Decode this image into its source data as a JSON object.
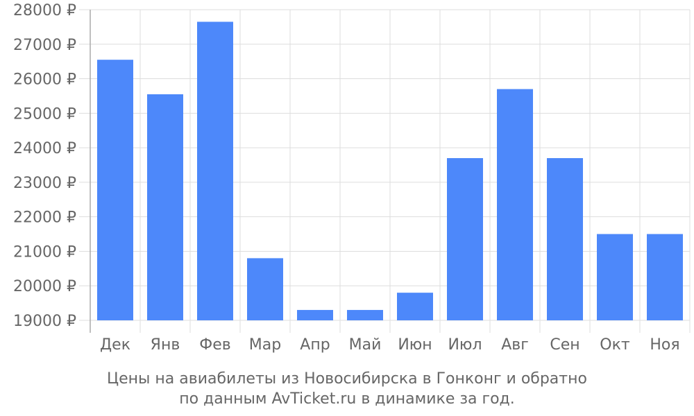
{
  "chart_data": {
    "type": "bar",
    "categories": [
      "Дек",
      "Янв",
      "Фев",
      "Мар",
      "Апр",
      "Май",
      "Июн",
      "Июл",
      "Авг",
      "Сен",
      "Окт",
      "Ноя"
    ],
    "values": [
      26550,
      25550,
      27650,
      20800,
      19300,
      19300,
      19800,
      23700,
      25700,
      23700,
      21500,
      21500
    ],
    "ylim": [
      19000,
      28000
    ],
    "ytick_step": 1000,
    "ytick_suffix": " ₽",
    "grid": true,
    "bar_color": "#4d88fa",
    "grid_color": "#dddddd",
    "axis_color": "#aaaaaa",
    "title": "Цены на авиабилеты из Новосибирска в Гонконг и обратно",
    "subtitle": "по данным AvTicket.ru в динамике за год."
  }
}
